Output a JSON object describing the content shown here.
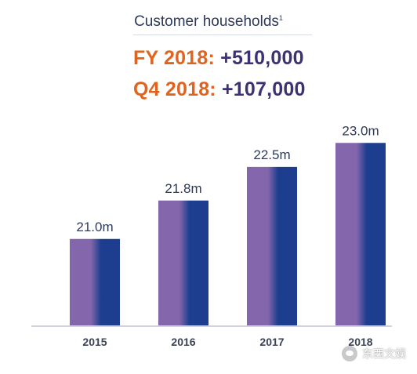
{
  "chart_data": {
    "type": "bar",
    "title": "Customer households",
    "title_note": "1",
    "categories": [
      "2015",
      "2016",
      "2017",
      "2018"
    ],
    "values": [
      21.0,
      21.8,
      22.5,
      23.0
    ],
    "data_labels": [
      "21.0m",
      "21.8m",
      "22.5m",
      "23.0m"
    ],
    "unit": "m",
    "ylim": [
      19.2,
      23.2
    ],
    "grid": false,
    "legend": "none",
    "annotations": [
      {
        "label": "FY 2018:",
        "value": "+510,000"
      },
      {
        "label": "Q4 2018:",
        "value": "+107,000"
      }
    ]
  },
  "colors": {
    "title": "#2d3a5a",
    "annotation_label": "#e0641e",
    "annotation_value": "#3b3273",
    "bar_left": "#8466ac",
    "bar_right": "#1d3e8f",
    "axis": "#bfc4cf",
    "tick_label": "#3a4254"
  },
  "watermark": {
    "icon": "wechat-icon",
    "text": "东西文娱"
  }
}
